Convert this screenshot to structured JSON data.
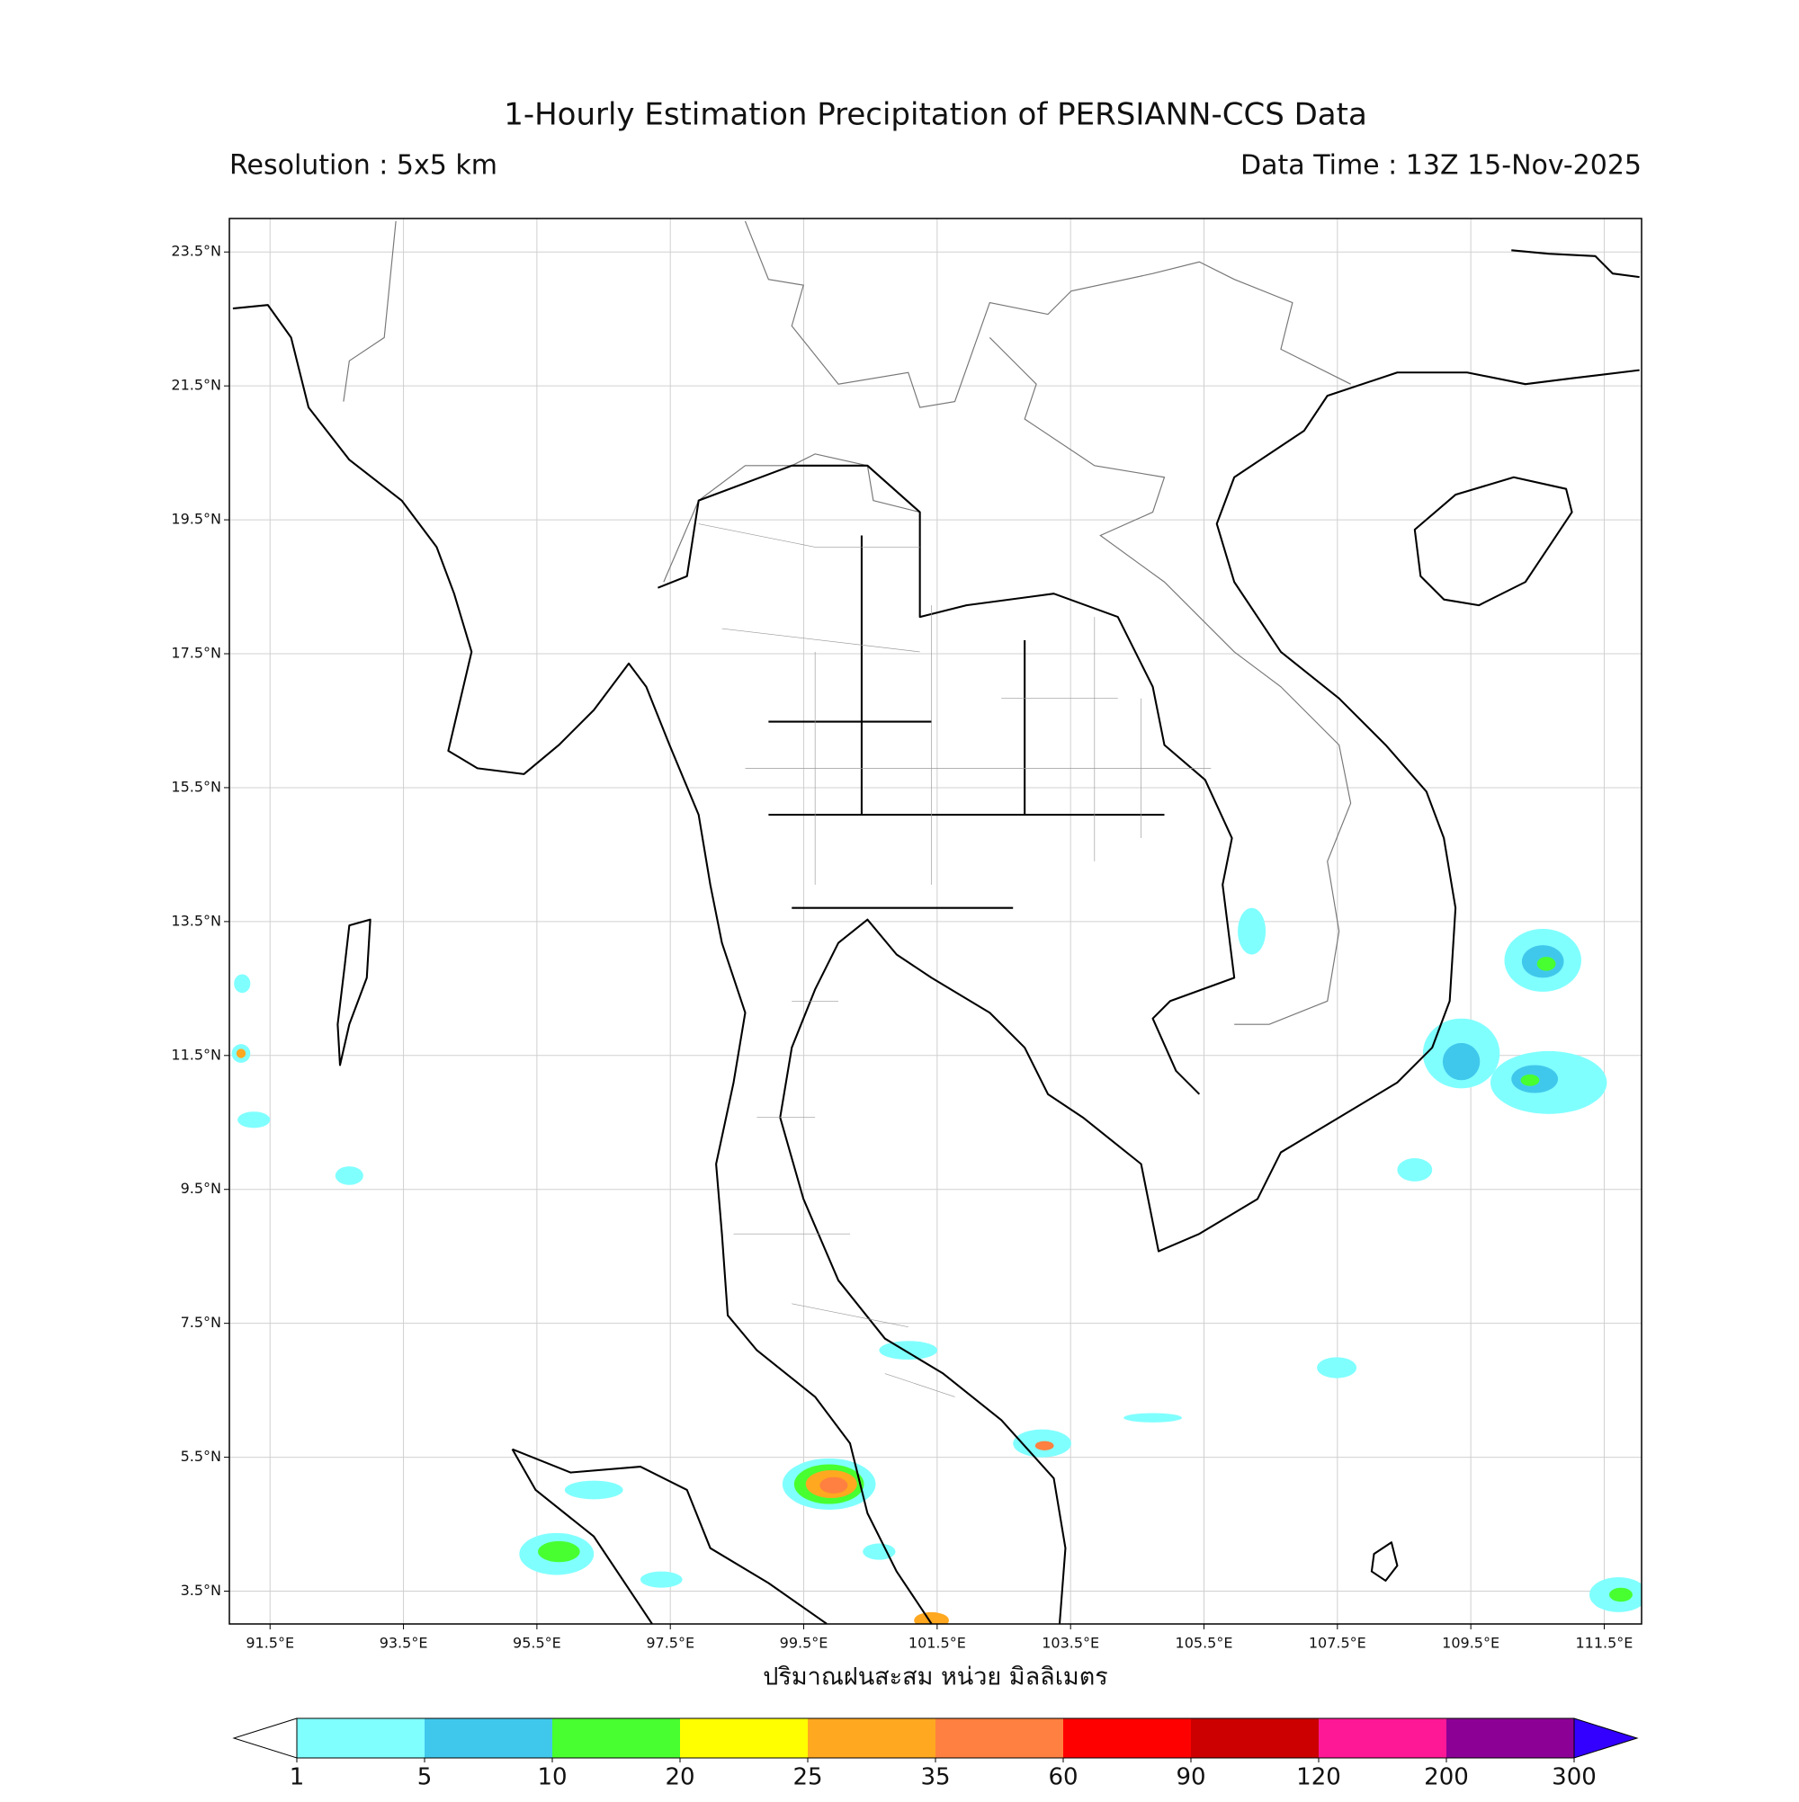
{
  "header": {
    "title": "1-Hourly Estimation Precipitation of PERSIANN-CCS Data",
    "resolution": "Resolution : 5x5 km",
    "data_time": "Data Time : 13Z 15-Nov-2025"
  },
  "map": {
    "xlim": [
      90.89,
      112.06
    ],
    "ylim": [
      3.01,
      24.0
    ],
    "xticks": [
      {
        "value": 91.5,
        "label": "91.5°E"
      },
      {
        "value": 93.5,
        "label": "93.5°E"
      },
      {
        "value": 95.5,
        "label": "95.5°E"
      },
      {
        "value": 97.5,
        "label": "97.5°E"
      },
      {
        "value": 99.5,
        "label": "99.5°E"
      },
      {
        "value": 101.5,
        "label": "101.5°E"
      },
      {
        "value": 103.5,
        "label": "103.5°E"
      },
      {
        "value": 105.5,
        "label": "105.5°E"
      },
      {
        "value": 107.5,
        "label": "107.5°E"
      },
      {
        "value": 109.5,
        "label": "109.5°E"
      },
      {
        "value": 111.5,
        "label": "111.5°E"
      }
    ],
    "yticks": [
      {
        "value": 3.5,
        "label": "3.5°N"
      },
      {
        "value": 5.5,
        "label": "5.5°N"
      },
      {
        "value": 7.5,
        "label": "7.5°N"
      },
      {
        "value": 9.5,
        "label": "9.5°N"
      },
      {
        "value": 11.5,
        "label": "11.5°N"
      },
      {
        "value": 13.5,
        "label": "13.5°N"
      },
      {
        "value": 15.5,
        "label": "15.5°N"
      },
      {
        "value": 17.5,
        "label": "17.5°N"
      },
      {
        "value": 19.5,
        "label": "19.5°N"
      },
      {
        "value": 21.5,
        "label": "21.5°N"
      },
      {
        "value": 23.5,
        "label": "23.5°N"
      }
    ],
    "grid": true,
    "xlabel": "ปริมาณฝนสะสม หน่วย มิลลิเมตร"
  },
  "colorbar": {
    "levels": [
      1,
      5,
      10,
      20,
      25,
      35,
      60,
      90,
      120,
      200,
      300
    ],
    "colors": [
      "#80ffff",
      "#40c8ec",
      "#48ff30",
      "#ffff00",
      "#ffa820",
      "#ff8040",
      "#ff0000",
      "#cc0000",
      "#ff1896",
      "#8c0096"
    ],
    "under_color": "#ffffff",
    "over_color": "#3300ff"
  }
}
